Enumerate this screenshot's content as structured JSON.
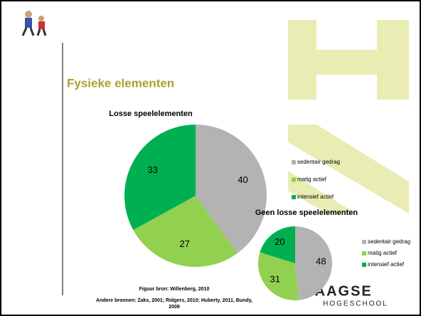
{
  "slide": {
    "title": "Fysieke elementen",
    "sources": [
      "Figuur bron: Willenberg, 2010",
      "Andere bronnen: Zaks, 2001; Ridgers, 2010; Huberty, 2011, Bundy,",
      "2008"
    ],
    "logo": [
      "HAAGSE",
      "HOGESCHOOL"
    ]
  },
  "chart_data": [
    {
      "type": "pie",
      "title": "Losse speelelementen",
      "categories": [
        "sedentair gedrag",
        "matig actief",
        "intensief actief"
      ],
      "values": [
        40,
        27,
        33
      ],
      "colors": [
        "#b3b3b3",
        "#92d050",
        "#00b050"
      ]
    },
    {
      "type": "pie",
      "title": "Geen losse speelelementen",
      "categories": [
        "sedentair gedrag",
        "matig actief",
        "intensief actief"
      ],
      "values": [
        48,
        31,
        20
      ],
      "colors": [
        "#b3b3b3",
        "#92d050",
        "#00b050"
      ]
    }
  ]
}
